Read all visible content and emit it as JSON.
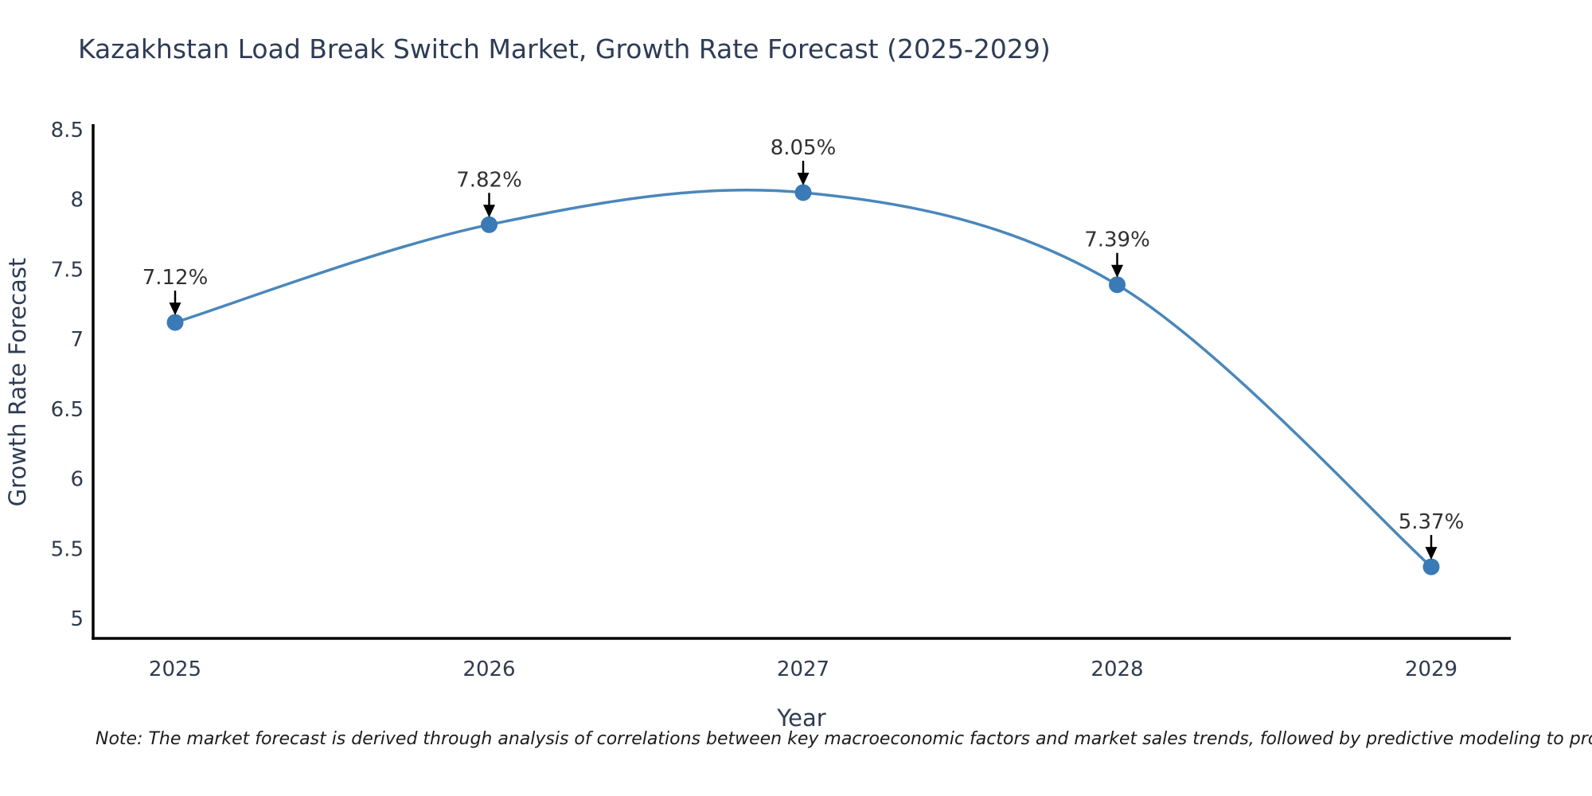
{
  "chart_data": {
    "type": "line",
    "line_shape": "spline",
    "title": "Kazakhstan Load Break Switch Market, Growth Rate Forecast (2025-2029)",
    "xlabel": "Year",
    "ylabel": "Growth Rate Forecast",
    "categories": [
      "2025",
      "2026",
      "2027",
      "2028",
      "2029"
    ],
    "x": [
      2025,
      2026,
      2027,
      2028,
      2029
    ],
    "values": [
      7.12,
      7.82,
      8.05,
      7.39,
      5.37
    ],
    "point_labels": [
      "7.12%",
      "7.82%",
      "8.05%",
      "7.39%",
      "5.37%"
    ],
    "ylim": [
      5,
      8.5
    ],
    "yticks": [
      5,
      5.5,
      6,
      6.5,
      7,
      7.5,
      8,
      8.5
    ],
    "ytick_labels": [
      "5",
      "5.5",
      "6",
      "6.5",
      "7",
      "7.5",
      "8",
      "8.5"
    ],
    "grid": false,
    "legend_position": "none",
    "markers": "circle",
    "annotation_style": "label-with-down-arrow",
    "colors": {
      "line": "#4a87ba",
      "marker": "#3a7ab6",
      "axis": "#000000",
      "arrow": "#000000",
      "tick_text": "#2f3b4e",
      "axis_title_text": "#2e3c55",
      "title_text": "#2e3c55",
      "annotation_text": "#313131",
      "background": "#ffffff"
    }
  },
  "footer": {
    "note": "Note: The market forecast is derived through analysis of correlations between key macroeconomic factors and market sales trends, followed by predictive modeling to project future sales"
  }
}
